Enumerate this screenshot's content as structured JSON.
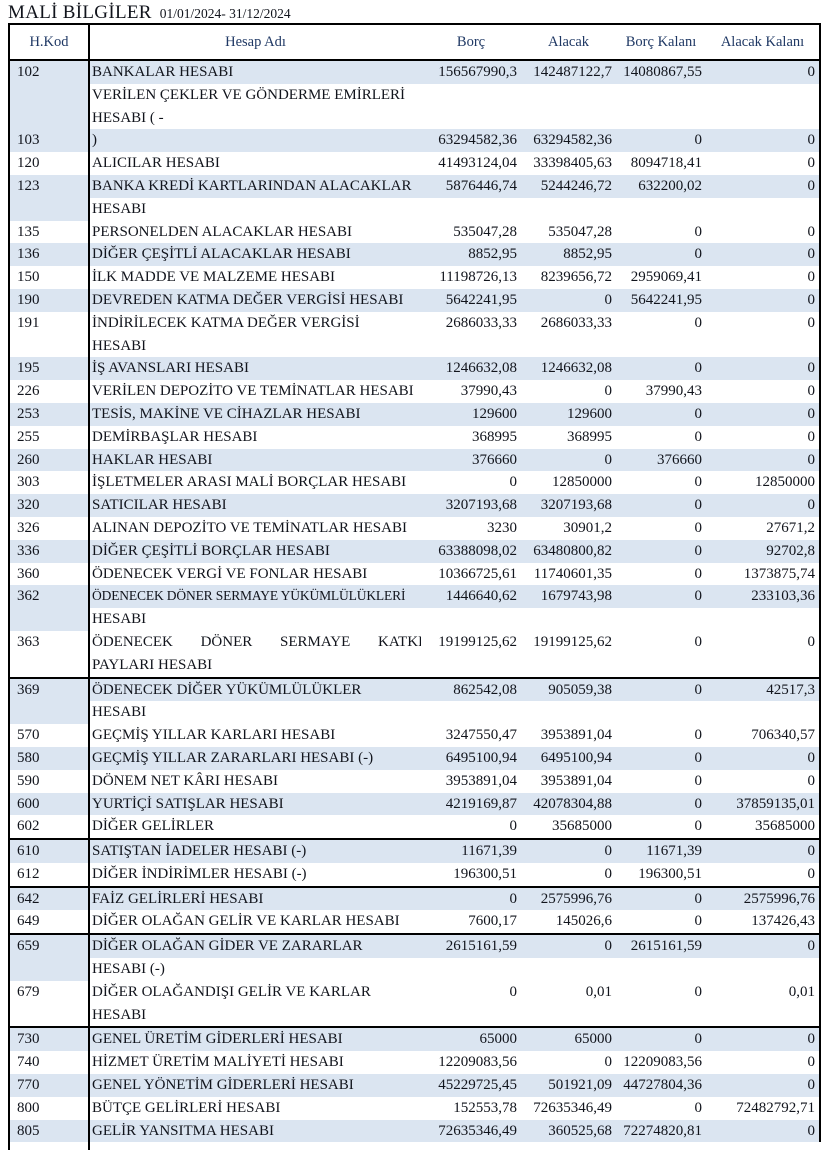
{
  "title": "MALİ BİLGİLER",
  "date_range": "01/01/2024- 31/12/2024",
  "table": {
    "stripe_color": "#dbe5f1",
    "header_text_color": "#1f3864",
    "border_color": "#000000",
    "columns": [
      "H.Kod",
      "Hesap Adı",
      "Borç",
      "Alacak",
      "Borç Kalanı",
      "Alacak Kalanı"
    ],
    "rows": [
      {
        "kod": "102",
        "name": "BANKALAR HESABI",
        "values": [
          "156567990,3",
          "142487122,7",
          "14080867,55",
          "0"
        ],
        "stripe": true
      },
      {
        "kod": "103",
        "name": "VERİLEN ÇEKLER VE GÖNDERME EMİRLERİ\nHESABI ( -\n)",
        "values": [
          "63294582,36",
          "63294582,36",
          "0",
          "0"
        ],
        "stripe": true,
        "baseline": "bottom"
      },
      {
        "kod": "120",
        "name": "ALICILAR HESABI",
        "values": [
          "41493124,04",
          "33398405,63",
          "8094718,41",
          "0"
        ],
        "stripe": false
      },
      {
        "kod": "123",
        "name": "BANKA KREDİ KARTLARINDAN ALACAKLAR\nHESABI",
        "values": [
          "5876446,74",
          "5244246,72",
          "632200,02",
          "0"
        ],
        "stripe": true
      },
      {
        "kod": "135",
        "name": "PERSONELDEN ALACAKLAR HESABI",
        "values": [
          "535047,28",
          "535047,28",
          "0",
          "0"
        ],
        "stripe": false
      },
      {
        "kod": "136",
        "name": "DİĞER ÇEŞİTLİ ALACAKLAR HESABI",
        "values": [
          "8852,95",
          "8852,95",
          "0",
          "0"
        ],
        "stripe": true
      },
      {
        "kod": "150",
        "name": "İLK MADDE VE MALZEME HESABI",
        "values": [
          "11198726,13",
          "8239656,72",
          "2959069,41",
          "0"
        ],
        "stripe": false
      },
      {
        "kod": "190",
        "name": "DEVREDEN KATMA DEĞER VERGİSİ HESABI",
        "values": [
          "5642241,95",
          "0",
          "5642241,95",
          "0"
        ],
        "stripe": true
      },
      {
        "kod": "191",
        "name": "İNDİRİLECEK KATMA DEĞER VERGİSİ\nHESABI",
        "values": [
          "2686033,33",
          "2686033,33",
          "0",
          "0"
        ],
        "stripe": false
      },
      {
        "kod": "195",
        "name": "İŞ AVANSLARI HESABI",
        "values": [
          "1246632,08",
          "1246632,08",
          "0",
          "0"
        ],
        "stripe": true
      },
      {
        "kod": "226",
        "name": "VERİLEN DEPOZİTO VE TEMİNATLAR HESABI",
        "values": [
          "37990,43",
          "0",
          "37990,43",
          "0"
        ],
        "stripe": false
      },
      {
        "kod": "253",
        "name": "TESİS, MAKİNE VE CİHAZLAR HESABI",
        "values": [
          "129600",
          "129600",
          "0",
          "0"
        ],
        "stripe": true
      },
      {
        "kod": "255",
        "name": "DEMİRBAŞLAR HESABI",
        "values": [
          "368995",
          "368995",
          "0",
          "0"
        ],
        "stripe": false
      },
      {
        "kod": "260",
        "name": "HAKLAR HESABI",
        "values": [
          "376660",
          "0",
          "376660",
          "0"
        ],
        "stripe": true
      },
      {
        "kod": "303",
        "name": "İŞLETMELER ARASI MALİ BORÇLAR HESABI",
        "values": [
          "0",
          "12850000",
          "0",
          "12850000"
        ],
        "stripe": false
      },
      {
        "kod": "320",
        "name": "SATICILAR HESABI",
        "values": [
          "3207193,68",
          "3207193,68",
          "0",
          "0"
        ],
        "stripe": true
      },
      {
        "kod": "326",
        "name": "ALINAN DEPOZİTO VE TEMİNATLAR HESABI",
        "values": [
          "3230",
          "30901,2",
          "0",
          "27671,2"
        ],
        "stripe": false
      },
      {
        "kod": "336",
        "name": "DİĞER ÇEŞİTLİ BORÇLAR HESABI",
        "values": [
          "63388098,02",
          "63480800,82",
          "0",
          "92702,8"
        ],
        "stripe": true
      },
      {
        "kod": "360",
        "name": "ÖDENECEK VERGİ VE FONLAR HESABI",
        "values": [
          "10366725,61",
          "11740601,35",
          "0",
          "1373875,74"
        ],
        "stripe": false
      },
      {
        "kod": "362",
        "name": "ÖDENECEK DÖNER SERMAYE YÜKÜMLÜLÜKLERİ\nHESABI",
        "values": [
          "1446640,62",
          "1679743,98",
          "0",
          "233103,36"
        ],
        "stripe": true,
        "cond": true
      },
      {
        "kod": "363",
        "name": "ÖDENECEK DÖNER SERMAYE KATKI\nPAYLARI HESABI",
        "values": [
          "19199125,62",
          "19199125,62",
          "0",
          "0"
        ],
        "stripe": false,
        "just": true
      },
      {
        "kod": "369",
        "name": "ÖDENECEK DİĞER YÜKÜMLÜLÜKLER\nHESABI",
        "values": [
          "862542,08",
          "905059,38",
          "0",
          "42517,3"
        ],
        "stripe": true,
        "top_border": true
      },
      {
        "kod": "570",
        "name": "GEÇMİŞ YILLAR KARLARI HESABI",
        "values": [
          "3247550,47",
          "3953891,04",
          "0",
          "706340,57"
        ],
        "stripe": false
      },
      {
        "kod": "580",
        "name": "GEÇMİŞ YILLAR ZARARLARI HESABI (-)",
        "values": [
          "6495100,94",
          "6495100,94",
          "0",
          "0"
        ],
        "stripe": true
      },
      {
        "kod": "590",
        "name": "DÖNEM NET KÂRI HESABI",
        "values": [
          "3953891,04",
          "3953891,04",
          "0",
          "0"
        ],
        "stripe": false
      },
      {
        "kod": "600",
        "name": "YURTİÇİ SATIŞLAR HESABI",
        "values": [
          "4219169,87",
          "42078304,88",
          "0",
          "37859135,01"
        ],
        "stripe": true
      },
      {
        "kod": "602",
        "name": "DİĞER GELİRLER",
        "values": [
          "0",
          "35685000",
          "0",
          "35685000"
        ],
        "stripe": false
      },
      {
        "kod": "610",
        "name": "SATIŞTAN İADELER HESABI (-)",
        "values": [
          "11671,39",
          "0",
          "11671,39",
          "0"
        ],
        "stripe": true,
        "top_border": true
      },
      {
        "kod": "612",
        "name": "DİĞER İNDİRİMLER HESABI (-)",
        "values": [
          "196300,51",
          "0",
          "196300,51",
          "0"
        ],
        "stripe": false
      },
      {
        "kod": "642",
        "name": "FAİZ GELİRLERİ HESABI",
        "values": [
          "0",
          "2575996,76",
          "0",
          "2575996,76"
        ],
        "stripe": true,
        "top_border": true
      },
      {
        "kod": "649",
        "name": "DİĞER OLAĞAN GELİR VE KARLAR HESABI",
        "values": [
          "7600,17",
          "145026,6",
          "0",
          "137426,43"
        ],
        "stripe": false
      },
      {
        "kod": "659",
        "name": "DİĞER OLAĞAN GİDER VE ZARARLAR\nHESABI (-)",
        "values": [
          "2615161,59",
          "0",
          "2615161,59",
          "0"
        ],
        "stripe": true,
        "top_border": true
      },
      {
        "kod": "679",
        "name": "DİĞER OLAĞANDIŞI GELİR VE KARLAR\nHESABI",
        "values": [
          "0",
          "0,01",
          "0",
          "0,01"
        ],
        "stripe": false
      },
      {
        "kod": "730",
        "name": "GENEL ÜRETİM GİDERLERİ HESABI",
        "values": [
          "65000",
          "65000",
          "0",
          "0"
        ],
        "stripe": true,
        "top_border": true
      },
      {
        "kod": "740",
        "name": "HİZMET ÜRETİM MALİYETİ HESABI",
        "values": [
          "12209083,56",
          "0",
          "12209083,56",
          "0"
        ],
        "stripe": false
      },
      {
        "kod": "770",
        "name": "GENEL YÖNETİM GİDERLERİ HESABI",
        "values": [
          "45229725,45",
          "501921,09",
          "44727804,36",
          "0"
        ],
        "stripe": true
      },
      {
        "kod": "800",
        "name": "BÜTÇE GELİRLERİ HESABI",
        "values": [
          "152553,78",
          "72635346,49",
          "0",
          "72482792,71"
        ],
        "stripe": false
      },
      {
        "kod": "805",
        "name": "GELİR YANSITMA HESABI",
        "values": [
          "72635346,49",
          "360525,68",
          "72274820,81",
          "0"
        ],
        "stripe": true
      }
    ]
  }
}
